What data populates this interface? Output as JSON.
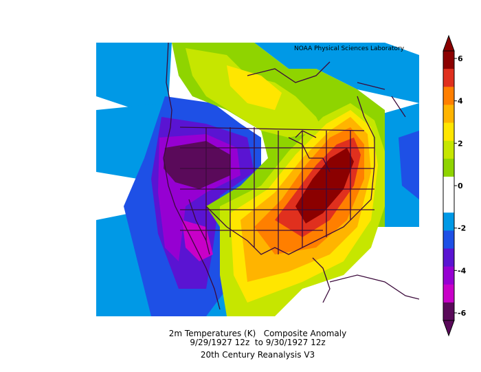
{
  "credit": "NOAA Physical Sciences Laboratory",
  "caption": {
    "line1": "2m Temperatures (K)   Composite Anomaly",
    "line2": "9/29/1927 12z  to 9/30/1927 12z",
    "line3": "20th Century Reanalysis V3"
  },
  "colorbar": {
    "ticks": [
      "6",
      "4",
      "2",
      "0",
      "-2",
      "-4",
      "-6"
    ],
    "colors": [
      "#8b0000",
      "#e0301e",
      "#ff7f00",
      "#ffb400",
      "#ffe600",
      "#c6e600",
      "#8fd400",
      "#ffffff",
      "#ffffff",
      "#0099e6",
      "#1e50e6",
      "#5a14d2",
      "#9600d2",
      "#c800c8",
      "#5a0a5a"
    ]
  }
}
